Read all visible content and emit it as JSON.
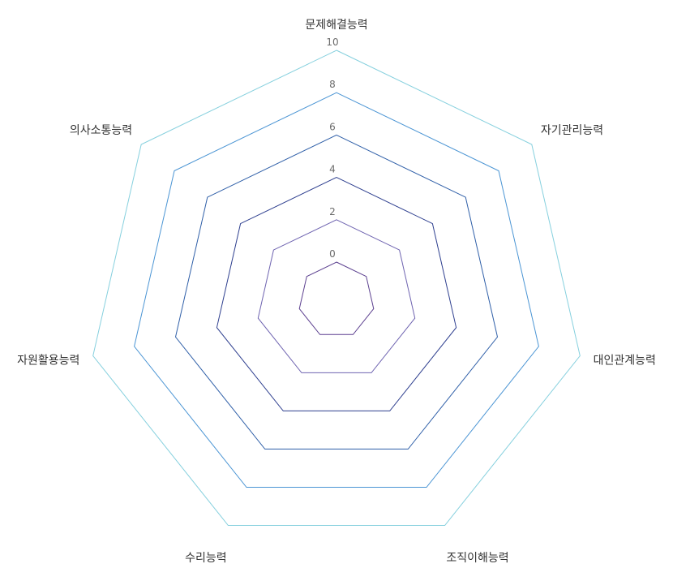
{
  "chart_data": {
    "type": "radar",
    "categories": [
      "문제해결능력",
      "자기관리능력",
      "대인관계능력",
      "조직이해능력",
      "수리능력",
      "자원활용능력",
      "의사소통능력"
    ],
    "ticks": [
      "0",
      "2",
      "4",
      "6",
      "8",
      "10"
    ],
    "rlim": [
      0,
      10
    ],
    "series": [],
    "ring_colors": [
      "#5b3f8f",
      "#6e63b0",
      "#2e3f8f",
      "#2f5fa8",
      "#4b95d4",
      "#86d0de"
    ],
    "grid": true
  }
}
